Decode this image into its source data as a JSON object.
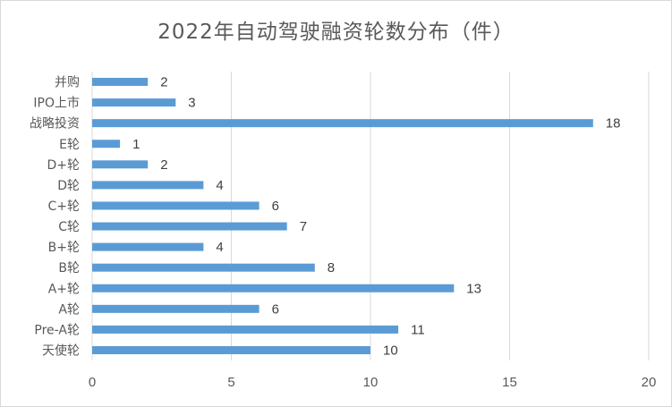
{
  "chart_data": {
    "type": "bar",
    "orientation": "horizontal",
    "title": "2022年自动驾驶融资轮数分布（件）",
    "categories": [
      "并购",
      "IPO上市",
      "战略投资",
      "E轮",
      "D+轮",
      "D轮",
      "C+轮",
      "C轮",
      "B+轮",
      "B轮",
      "A+轮",
      "A轮",
      "Pre-A轮",
      "天使轮"
    ],
    "values": [
      2,
      3,
      18,
      1,
      2,
      4,
      6,
      7,
      4,
      8,
      13,
      6,
      11,
      10
    ],
    "xlim": [
      0,
      20
    ],
    "xticks": [
      0,
      5,
      10,
      15,
      20
    ],
    "grid": true,
    "data_labels": true,
    "bar_color": "#5b9bd5",
    "grid_color": "#d9d9d9",
    "text_color": "#595959"
  }
}
